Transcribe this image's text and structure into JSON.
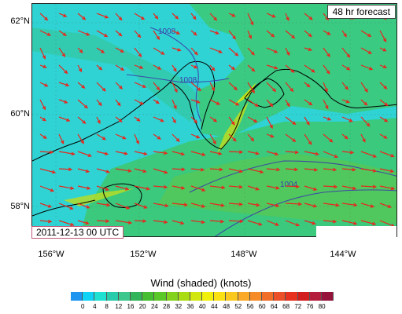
{
  "header": {
    "forecast_label": "48 hr forecast"
  },
  "footer": {
    "date_label": "2011-12-13 00 UTC"
  },
  "latitude_ticks": [
    "62°N",
    "60°N",
    "58°N"
  ],
  "longitude_ticks": [
    "156°W",
    "152°W",
    "148°W",
    "144°W"
  ],
  "isobar_labels": [
    "1008",
    "1008",
    "1004"
  ],
  "legend": {
    "title": "Wind (shaded)  (knots)",
    "values": [
      "0",
      "4",
      "8",
      "12",
      "16",
      "20",
      "24",
      "28",
      "32",
      "36",
      "40",
      "44",
      "48",
      "52",
      "56",
      "60",
      "64",
      "68",
      "72",
      "76",
      "80"
    ],
    "colors": [
      "#1e96f0",
      "#0fd2f5",
      "#1ee1d2",
      "#28cbaa",
      "#3cc88c",
      "#32b45a",
      "#46be32",
      "#5ac828",
      "#82d21e",
      "#aadc14",
      "#d2e60f",
      "#f0f00a",
      "#fae114",
      "#fac81e",
      "#faaa28",
      "#f58c28",
      "#f06e28",
      "#eb5028",
      "#e6321e",
      "#d21e1e",
      "#b41e3c",
      "#96143c"
    ]
  },
  "map_colors": {
    "ocean": "#2fd3d3",
    "land": "#3cc873",
    "land_strong": "#5ac850",
    "jet": "#b4dc28",
    "arrow": "#e6281e",
    "isobar": "#3c3caa",
    "coast": "#000000"
  }
}
